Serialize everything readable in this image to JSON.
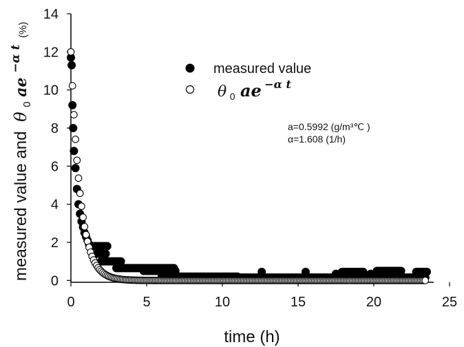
{
  "chart_data": {
    "type": "scatter",
    "title": "",
    "xlabel": "time (h)",
    "ylabel_prefix": "measured value and",
    "ylabel_formula": {
      "theta": "θ",
      "sub": "0",
      "base": "ae",
      "sup": "−α t"
    },
    "ylabel_unit": "(%)",
    "xlim": [
      0,
      25
    ],
    "ylim": [
      -1,
      14
    ],
    "x_ticks": [
      0,
      5,
      10,
      15,
      20,
      25
    ],
    "y_ticks": [
      0,
      2,
      4,
      6,
      8,
      10,
      12,
      14
    ],
    "grid": false,
    "legend_position": "top-right",
    "series": [
      {
        "name": "measured value",
        "marker": "filled-circle",
        "color": "#000000",
        "segments": [
          {
            "x_start": 0.0,
            "x_end": 0.2,
            "step": 0.05,
            "values": [
              11.7,
              11.3,
              9.2,
              8.0,
              6.8
            ]
          },
          {
            "x_start": 0.3,
            "x_end": 1.2,
            "step": 0.1,
            "values": [
              5.9,
              4.8,
              4.0,
              3.5,
              3.1,
              2.8,
              2.5,
              2.3,
              2.1,
              1.9
            ]
          },
          {
            "x_start": 1.3,
            "x_end": 2.4,
            "step": 0.1,
            "value": 1.8
          },
          {
            "x_start": 1.7,
            "x_end": 2.3,
            "step": 0.1,
            "value": 1.4
          },
          {
            "x_start": 2.0,
            "x_end": 3.3,
            "step": 0.1,
            "value": 1.0
          },
          {
            "x_start": 3.0,
            "x_end": 6.8,
            "step": 0.1,
            "value": 0.65
          },
          {
            "x_start": 4.8,
            "x_end": 6.9,
            "step": 0.1,
            "value": 0.5
          },
          {
            "x_start": 6.0,
            "x_end": 11.0,
            "step": 0.1,
            "value": 0.2
          },
          {
            "x_start": 11.0,
            "x_end": 23.4,
            "step": 0.1,
            "value": 0.15
          },
          {
            "x_start": 17.9,
            "x_end": 19.3,
            "step": 0.1,
            "value": 0.45
          },
          {
            "x_start": 20.2,
            "x_end": 21.8,
            "step": 0.1,
            "value": 0.5
          },
          {
            "x_start": 22.8,
            "x_end": 23.5,
            "step": 0.1,
            "value": 0.45
          }
        ],
        "points": [
          [
            12.6,
            0.45
          ],
          [
            15.5,
            0.45
          ],
          [
            17.5,
            0.35
          ],
          [
            19.8,
            0.35
          ],
          [
            20.0,
            0.3
          ]
        ]
      },
      {
        "name": "θ0 ae−αt",
        "marker": "open-circle",
        "color": "#000000",
        "model": {
          "theta0_a": 12.0,
          "alpha": 1.608,
          "x_start": 0.0,
          "x_end": 23.4,
          "step": 0.1
        }
      }
    ],
    "legend": {
      "measured_label": "measured value",
      "model_label": {
        "theta": "θ",
        "sub": "0",
        "base": "ae",
        "sup": "−α t"
      }
    },
    "annotations": {
      "a_line": "a=0.5992 (g/m³℃ )",
      "alpha_line": "α=1.608 (1/h)"
    }
  }
}
